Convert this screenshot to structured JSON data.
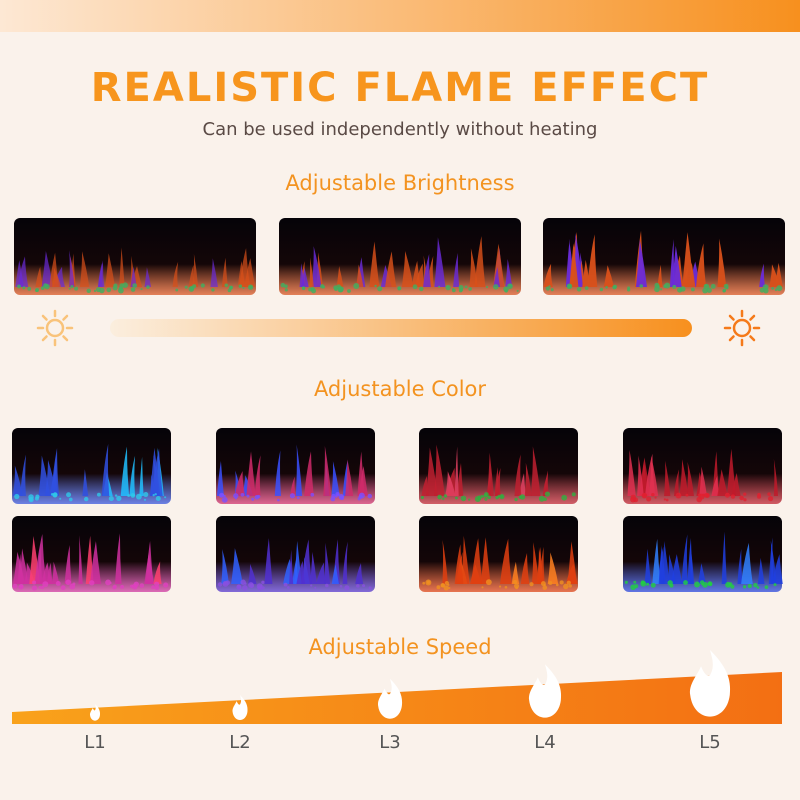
{
  "header": {
    "title": "REALISTIC FLAME EFFECT",
    "subtitle": "Can be used independently without heating"
  },
  "sections": {
    "brightness": "Adjustable Brightness",
    "color": "Adjustable Color",
    "speed": "Adjustable Speed"
  },
  "speed_levels": [
    "L1",
    "L2",
    "L3",
    "L4",
    "L5"
  ]
}
